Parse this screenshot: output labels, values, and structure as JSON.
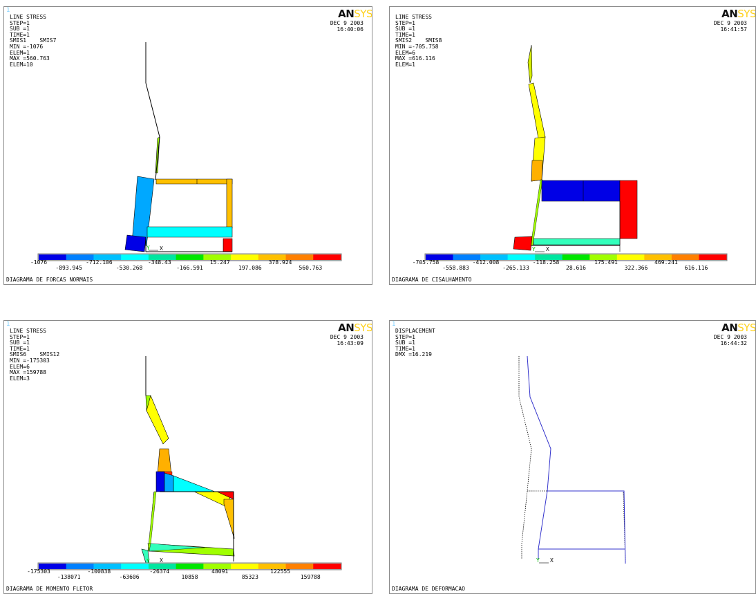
{
  "logo": {
    "an": "AN",
    "sys": "SYS"
  },
  "panels": [
    {
      "index": "1",
      "info": [
        "LINE STRESS",
        "STEP=1",
        "SUB =1",
        "TIME=1",
        "SMIS1    SMIS7",
        "MIN =-1076",
        "ELEM=1",
        "MAX =560.763",
        "ELEM=10"
      ],
      "date": "DEC  9 2003",
      "time": "16:40:06",
      "caption": "DIAGRAMA DE FORCAS NORMAIS",
      "legend_top": [
        "-1076",
        "-712.106",
        "-348.43",
        "15.247",
        "378.924"
      ],
      "legend_bottom": [
        "-893.945",
        "-530.268",
        "-166.591",
        "197.086",
        "560.763"
      ]
    },
    {
      "index": "",
      "info": [
        "LINE STRESS",
        "STEP=1",
        "SUB =1",
        "TIME=1",
        "SMIS2    SMIS8",
        "MIN =-705.758",
        "ELEM=6",
        "MAX =616.116",
        "ELEM=1"
      ],
      "date": "DEC  9 2003",
      "time": "16:41:57",
      "caption": "DIAGRAMA DE CISALHAMENTO",
      "legend_top": [
        "-705.758",
        "-412.008",
        "-118.258",
        "175.491",
        "469.241"
      ],
      "legend_bottom": [
        "-558.883",
        "-265.133",
        "28.616",
        "322.366",
        "616.116"
      ]
    },
    {
      "index": "1",
      "info": [
        "LINE STRESS",
        "STEP=1",
        "SUB =1",
        "TIME=1",
        "SMIS6    SMIS12",
        "MIN =-175303",
        "ELEM=6",
        "MAX =159788",
        "ELEM=3"
      ],
      "date": "DEC  9 2003",
      "time": "16:43:09",
      "caption": "DIAGRAMA DE MOMENTO FLETOR",
      "legend_top": [
        "-175303",
        "-100838",
        "-26374",
        "48091",
        "122555"
      ],
      "legend_bottom": [
        "-138071",
        "-63606",
        "10858",
        "85323",
        "159788"
      ]
    },
    {
      "index": "1",
      "info": [
        "DISPLACEMENT",
        "STEP=1",
        "SUB =1",
        "TIME=1",
        "DMX =16.219"
      ],
      "date": "DEC  9 2003",
      "time": "16:44:32",
      "caption": "DIAGRAMA DE DEFORMACAO"
    }
  ],
  "axis_label": "X",
  "axis_y": "Y",
  "colors": {
    "contour": [
      "#0000e6",
      "#0080ff",
      "#00c0ff",
      "#00ffff",
      "#00e6a0",
      "#00e600",
      "#a0ff00",
      "#ffff00",
      "#ffc000",
      "#ff8000",
      "#ff0000"
    ],
    "line": "#000000",
    "deformed": "#3333cc"
  }
}
